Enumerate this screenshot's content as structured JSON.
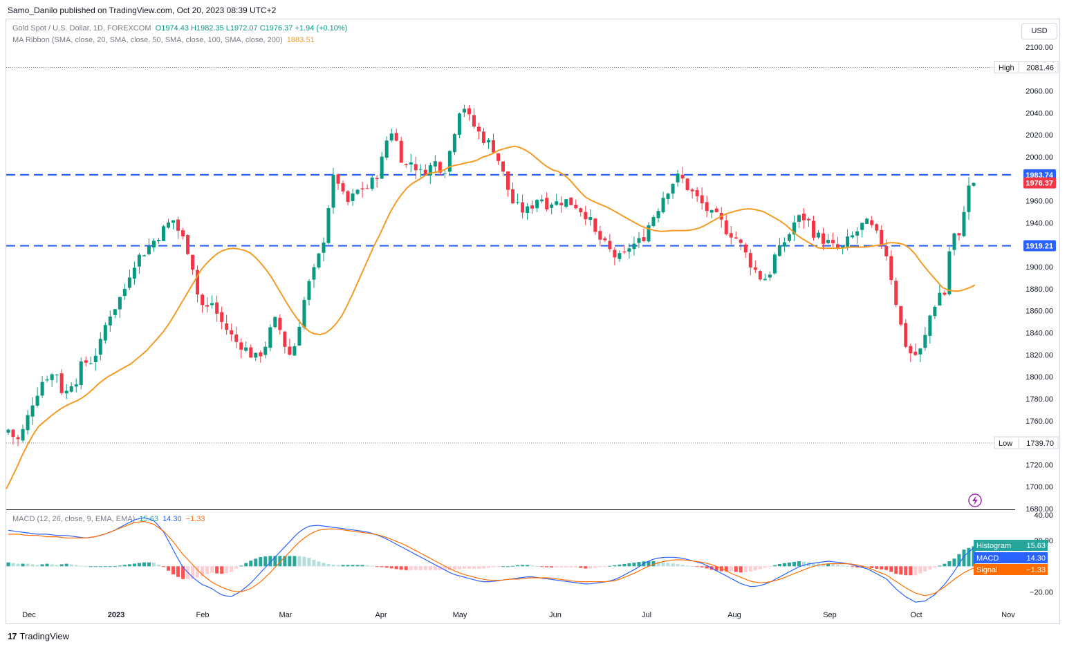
{
  "header": {
    "published": "Samo_Danilo published on TradingView.com, Oct 20, 2023 08:39 UTC+2"
  },
  "legend": {
    "symbol": "Gold Spot / U.S. Dollar, 1D, FOREXCOM",
    "ohlc": "O1974.43  H1982.35  L1972.07  C1976.37  +1.94 (+0.10%)",
    "ma_name": "MA Ribbon (SMA, close, 20, SMA, close, 50, SMA, close, 100, SMA, close, 200)",
    "ma_value": "1883.51",
    "macd_name": "MACD (12, 26, close, 9, EMA, EMA)",
    "macd_hist": "15.63",
    "macd_line": "14.30",
    "macd_signal": "−1.33"
  },
  "currency_button": "USD",
  "footer": {
    "brand": "TradingView",
    "logo": "17"
  },
  "colors": {
    "up": "#089981",
    "down": "#f23645",
    "ma": "#f59b24",
    "level": "#2962ff",
    "macd": "#2962ff",
    "signal": "#ff6d00"
  },
  "icons": {
    "footer_logo": "tradingview-logo-icon",
    "corner": "lightning-icon"
  },
  "chart_data": [
    {
      "type": "candlestick",
      "title": "Gold Spot / U.S. Dollar, 1D, FOREXCOM",
      "yaxis": {
        "ticks": [
          "2100.00",
          "2080.00",
          "2060.00",
          "2040.00",
          "2020.00",
          "2000.00",
          "1980.00",
          "1960.00",
          "1940.00",
          "1920.00",
          "1900.00",
          "1880.00",
          "1860.00",
          "1840.00",
          "1820.00",
          "1800.00",
          "1780.00",
          "1760.00",
          "1740.00",
          "1720.00",
          "1700.00",
          "1680.00"
        ],
        "ylim": [
          1680,
          2100
        ]
      },
      "xaxis": {
        "ticks": [
          "Dec",
          "2023",
          "Feb",
          "Mar",
          "Apr",
          "May",
          "Jun",
          "Jul",
          "Aug",
          "Sep",
          "Oct",
          "Nov"
        ]
      },
      "levels": [
        {
          "label": "1983.74",
          "value": 1983.74,
          "style": "dashed"
        },
        {
          "label": "1919.21",
          "value": 1919.21,
          "style": "dashed"
        }
      ],
      "high": {
        "label": "High",
        "value": "2081.46"
      },
      "low": {
        "label": "Low",
        "value": "1739.70"
      },
      "last_price": "1976.37",
      "ohlc_anchors": [
        1752,
        1746,
        1742,
        1750,
        1762,
        1776,
        1785,
        1795,
        1801,
        1800,
        1808,
        1790,
        1782,
        1796,
        1793,
        1806,
        1815,
        1811,
        1820,
        1823,
        1838,
        1855,
        1860,
        1867,
        1875,
        1884,
        1900,
        1906,
        1911,
        1915,
        1920,
        1925,
        1930,
        1935,
        1940,
        1943,
        1932,
        1925,
        1915,
        1900,
        1875,
        1865,
        1862,
        1868,
        1858,
        1850,
        1844,
        1838,
        1832,
        1830,
        1826,
        1822,
        1816,
        1820,
        1826,
        1836,
        1852,
        1848,
        1835,
        1821,
        1820,
        1838,
        1860,
        1878,
        1890,
        1900,
        1915,
        1932,
        1968,
        1985,
        1975,
        1960,
        1958,
        1965,
        1970,
        1972,
        1972,
        1978,
        1985,
        1998,
        2016,
        2024,
        2014,
        2000,
        1991,
        1996,
        1992,
        1985,
        1988,
        1990,
        1996,
        1992,
        1986,
        2000,
        2018,
        2040,
        2050,
        2038,
        2030,
        2025,
        2018,
        2015,
        2010,
        2006,
        1990,
        1980,
        1964,
        1955,
        1954,
        1950,
        1952,
        1958,
        1964,
        1962,
        1956,
        1960,
        1958,
        1960,
        1960,
        1958,
        1956,
        1952,
        1948,
        1941,
        1930,
        1925,
        1920,
        1915,
        1910,
        1908,
        1908,
        1918,
        1920,
        1922,
        1925,
        1935,
        1945,
        1950,
        1962,
        1968,
        1975,
        1980,
        1983,
        1975,
        1970,
        1965,
        1960,
        1955,
        1950,
        1945,
        1945,
        1938,
        1932,
        1930,
        1925,
        1918,
        1910,
        1902,
        1896,
        1890,
        1890,
        1896,
        1910,
        1915,
        1923,
        1930,
        1940,
        1944,
        1945,
        1942,
        1932,
        1928,
        1925,
        1923,
        1918,
        1918,
        1914,
        1922,
        1926,
        1930,
        1936,
        1940,
        1938,
        1932,
        1925,
        1920,
        1905,
        1880,
        1860,
        1838,
        1825,
        1820,
        1820,
        1825,
        1840,
        1860,
        1868,
        1878,
        1875,
        1920,
        1930,
        1925,
        1955,
        1972,
        1976.37
      ],
      "ma_anchors": [
        1698,
        1712,
        1728,
        1742,
        1754,
        1760,
        1766,
        1771,
        1775,
        1778,
        1782,
        1788,
        1795,
        1800,
        1804,
        1808,
        1812,
        1818,
        1824,
        1832,
        1840,
        1850,
        1862,
        1874,
        1886,
        1898,
        1906,
        1912,
        1916,
        1917,
        1916,
        1914,
        1908,
        1900,
        1890,
        1878,
        1866,
        1855,
        1846,
        1840,
        1838,
        1840,
        1846,
        1856,
        1870,
        1886,
        1902,
        1918,
        1932,
        1948,
        1960,
        1970,
        1976,
        1980,
        1985,
        1986,
        1988,
        1992,
        1993,
        1995,
        1996,
        2000,
        2002,
        2006,
        2008,
        2010,
        2008,
        2004,
        1998,
        1992,
        1988,
        1986,
        1980,
        1972,
        1964,
        1960,
        1957,
        1954,
        1950,
        1946,
        1942,
        1938,
        1935,
        1933,
        1932,
        1933,
        1933,
        1933,
        1934,
        1936,
        1940,
        1944,
        1948,
        1950,
        1952,
        1953,
        1952,
        1950,
        1946,
        1942,
        1937,
        1930,
        1925,
        1921,
        1917,
        1917,
        1917,
        1917,
        1918,
        1918,
        1918,
        1919,
        1920,
        1922,
        1922,
        1920,
        1915,
        1905,
        1896,
        1888,
        1880,
        1878,
        1878,
        1880,
        1883.51
      ],
      "series": [
        {
          "name": "MA Ribbon",
          "color": "#f59b24"
        }
      ]
    },
    {
      "type": "macd",
      "title": "MACD (12, 26, close, 9, EMA, EMA)",
      "yaxis": {
        "ticks": [
          "40.00",
          "20.00",
          "−20.00"
        ],
        "ylim": [
          -30,
          40
        ]
      },
      "values": {
        "Histogram": "15.63",
        "MACD": "14.30",
        "Signal": "−1.33"
      },
      "macd_anchors": [
        28,
        27,
        26,
        25,
        25,
        24,
        24,
        23,
        22,
        23,
        25,
        28,
        32,
        36,
        38,
        36,
        28,
        14,
        0,
        -8,
        -14,
        -17,
        -22,
        -24,
        -20,
        -14,
        -6,
        2,
        10,
        18,
        26,
        31,
        32,
        31,
        30,
        29,
        28,
        27,
        25,
        22,
        18,
        14,
        10,
        6,
        2,
        -2,
        -6,
        -8,
        -10,
        -12,
        -12,
        -11,
        -10,
        -9,
        -8,
        -9,
        -10,
        -11,
        -12,
        -13,
        -14,
        -13,
        -12,
        -10,
        -6,
        -2,
        3,
        6,
        7,
        7,
        6,
        4,
        2,
        -2,
        -6,
        -10,
        -14,
        -16,
        -15,
        -12,
        -8,
        -4,
        0,
        2,
        3,
        4,
        3,
        2,
        0,
        -2,
        -6,
        -10,
        -18,
        -24,
        -28,
        -27,
        -22,
        -14,
        -4,
        8,
        14.3
      ],
      "signal_anchors": [
        25,
        25,
        24,
        24,
        23,
        23,
        22,
        22,
        22,
        23,
        25,
        28,
        31,
        34,
        35,
        33,
        28,
        20,
        10,
        2,
        -6,
        -12,
        -16,
        -19,
        -20,
        -18,
        -13,
        -6,
        2,
        10,
        18,
        24,
        28,
        29,
        29,
        28,
        27,
        26,
        25,
        23,
        20,
        17,
        13,
        9,
        5,
        1,
        -3,
        -6,
        -8,
        -10,
        -11,
        -11,
        -10,
        -10,
        -9,
        -9,
        -9,
        -10,
        -11,
        -12,
        -12,
        -12,
        -12,
        -11,
        -8,
        -5,
        -1,
        2,
        4,
        5,
        5,
        4,
        3,
        1,
        -2,
        -6,
        -9,
        -12,
        -13,
        -12,
        -10,
        -7,
        -4,
        -1,
        1,
        2,
        2,
        2,
        1,
        -1,
        -4,
        -7,
        -12,
        -17,
        -21,
        -23,
        -21,
        -16,
        -10,
        -5,
        -1.33
      ]
    }
  ]
}
